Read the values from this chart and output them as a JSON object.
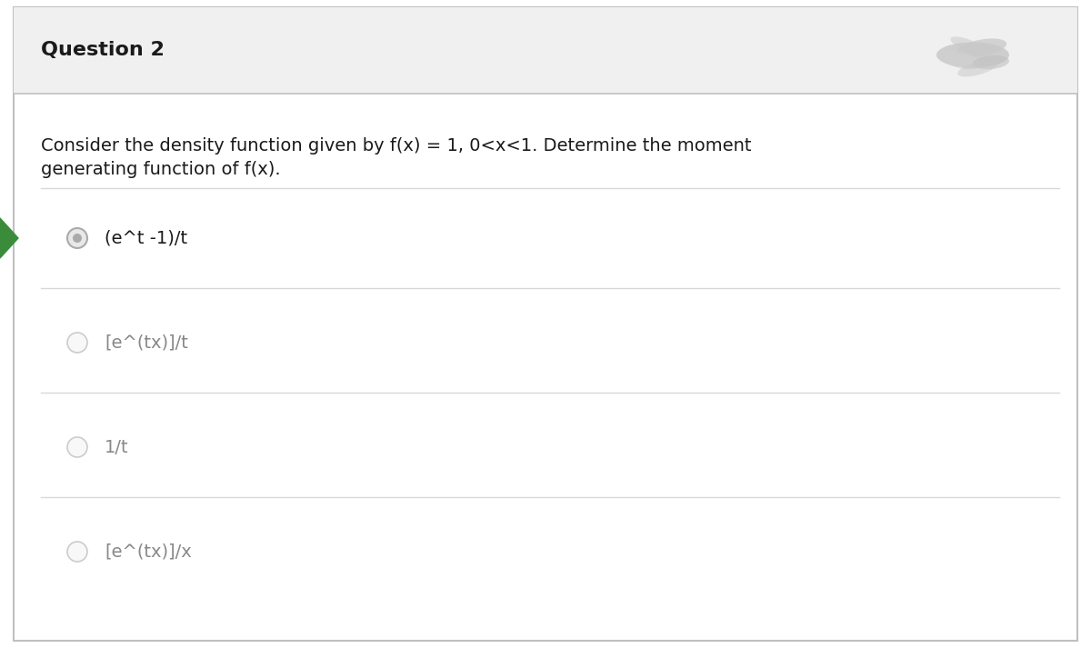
{
  "title": "Question 2",
  "question_text_line1": "Consider the density function given by f(x) = 1, 0<x<1. Determine the moment",
  "question_text_line2": "generating function of f(x).",
  "options": [
    "(e^t -1)/t",
    "[e^(tx)]/t",
    "1/t",
    "[e^(tx)]/x"
  ],
  "correct_option_index": 0,
  "bg_color": "#ffffff",
  "header_bg_color": "#f0f0f0",
  "header_text_color": "#1a1a1a",
  "question_text_color": "#1a1a1a",
  "option_text_color_selected": "#1a1a1a",
  "option_text_color_unselected": "#888888",
  "border_color": "#c0c0c0",
  "divider_color": "#d8d8d8",
  "arrow_color": "#3a8c3a",
  "title_fontsize": 16,
  "question_fontsize": 14,
  "option_fontsize": 14,
  "outer_border_color": "#c0c0c0"
}
